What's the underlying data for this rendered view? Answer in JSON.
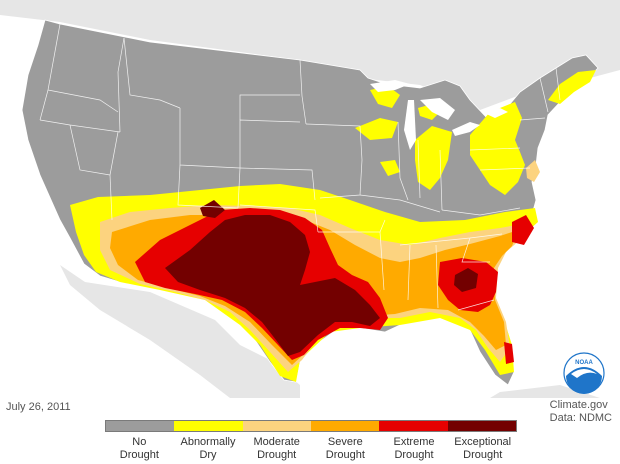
{
  "date": "July 26, 2011",
  "credit": {
    "line1": "Climate.gov",
    "line2": "Data: NDMC"
  },
  "logo": {
    "name": "noaa-logo",
    "text": "NOAA"
  },
  "legend": {
    "categories": [
      {
        "label": "No\nDrought",
        "color": "#9c9c9c"
      },
      {
        "label": "Abnormally\nDry",
        "color": "#ffff00"
      },
      {
        "label": "Moderate\nDrought",
        "color": "#fcd37f"
      },
      {
        "label": "Severe\nDrought",
        "color": "#ffaa00"
      },
      {
        "label": "Extreme\nDrought",
        "color": "#e60000"
      },
      {
        "label": "Exceptional\nDrought",
        "color": "#730000"
      }
    ]
  },
  "colors": {
    "ocean": "#ffffff",
    "neighbor_land": "#e6e6e6",
    "state_border": "#ffffff",
    "noaa_blue": "#1f75c9"
  }
}
